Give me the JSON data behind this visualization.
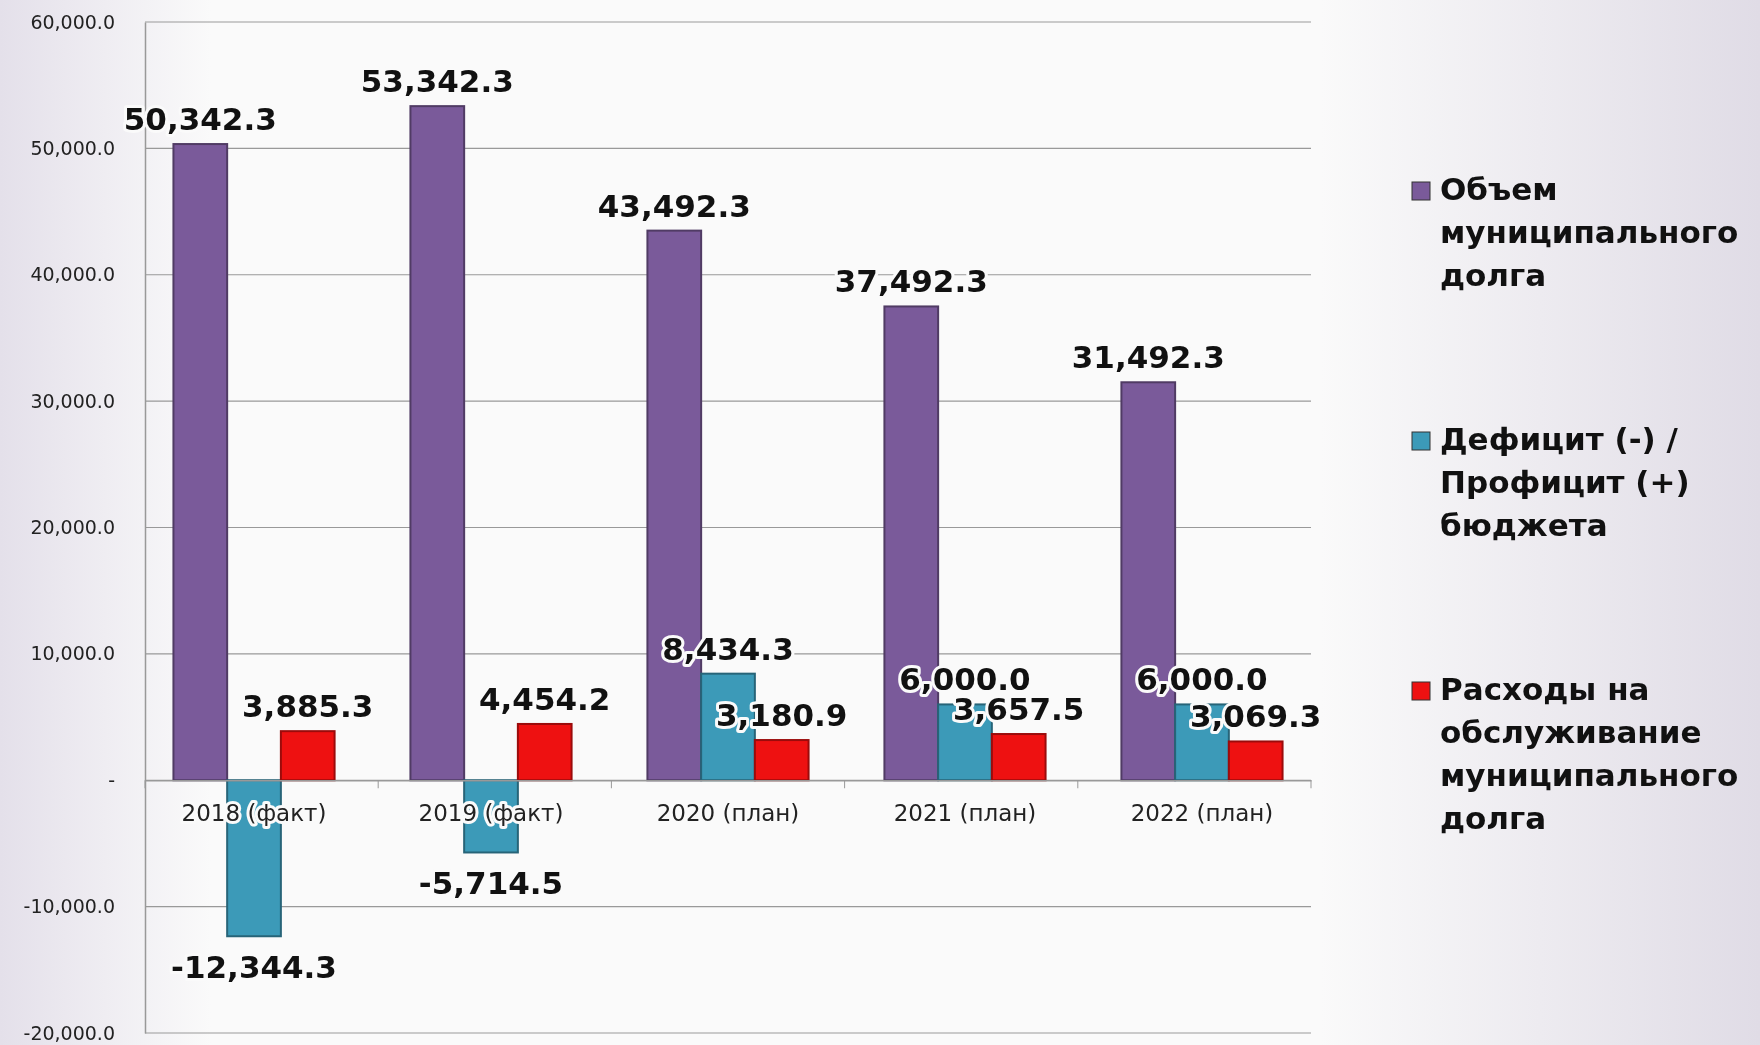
{
  "chart_data": {
    "type": "bar",
    "categories": [
      "2018 (факт)",
      "2019 (факт)",
      "2020 (план)",
      "2021 (план)",
      "2022 (план)"
    ],
    "series": [
      {
        "name": "Объем муниципального долга",
        "color": "#7a5a9a",
        "values": [
          50342.3,
          53342.3,
          43492.3,
          37492.3,
          31492.3
        ],
        "value_labels": [
          "50,342.3",
          "53,342.3",
          "43,492.3",
          "37,492.3",
          "31,492.3"
        ]
      },
      {
        "name": "Дефицит (-) / Профицит (+) бюджета",
        "color": "#3c9ab8",
        "values": [
          -12344.3,
          -5714.5,
          8434.3,
          6000.0,
          6000.0
        ],
        "value_labels": [
          "-12,344.3",
          "-5,714.5",
          "8,434.3",
          "6,000.0",
          "6,000.0"
        ]
      },
      {
        "name": "Расходы на обслуживание муниципального долга",
        "color": "#ee1111",
        "values": [
          3885.3,
          4454.2,
          3180.9,
          3657.5,
          3069.3
        ],
        "value_labels": [
          "3,885.3",
          "4,454.2",
          "3,180.9",
          "3,657.5",
          "3,069.3"
        ]
      }
    ],
    "ylim": [
      -20000,
      60000
    ],
    "yticks": [
      {
        "value": -20000,
        "label": "-20,000.0"
      },
      {
        "value": -10000,
        "label": "-10,000.0"
      },
      {
        "value": 0,
        "label": "-"
      },
      {
        "value": 10000,
        "label": "10,000.0"
      },
      {
        "value": 20000,
        "label": "20,000.0"
      },
      {
        "value": 30000,
        "label": "30,000.0"
      },
      {
        "value": 40000,
        "label": "40,000.0"
      },
      {
        "value": 50000,
        "label": "50,000.0"
      },
      {
        "value": 60000,
        "label": "60,000.0"
      }
    ],
    "grid": "y",
    "legend": "right"
  }
}
